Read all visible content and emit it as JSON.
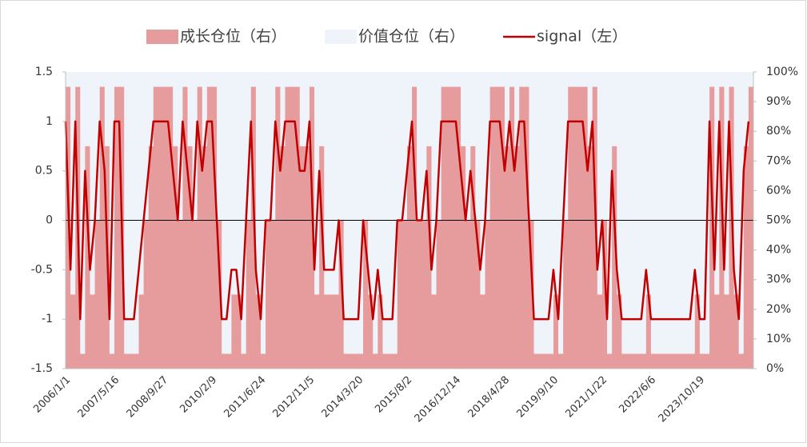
{
  "chart_data": {
    "type": "stacked-area-line",
    "categories": [
      "2006/1/1",
      null,
      null,
      null,
      null,
      null,
      null,
      null,
      null,
      null,
      "2007/5/16",
      null,
      null,
      null,
      null,
      null,
      null,
      null,
      null,
      null,
      "2008/9/27",
      null,
      null,
      null,
      null,
      null,
      null,
      null,
      null,
      null,
      "2010/2/9",
      null,
      null,
      null,
      null,
      null,
      null,
      null,
      null,
      null,
      "2011/6/24",
      null,
      null,
      null,
      null,
      null,
      null,
      null,
      null,
      null,
      "2012/11/5",
      null,
      null,
      null,
      null,
      null,
      null,
      null,
      null,
      null,
      "2014/3/20",
      null,
      null,
      null,
      null,
      null,
      null,
      null,
      null,
      null,
      "2015/8/2",
      null,
      null,
      null,
      null,
      null,
      null,
      null,
      null,
      null,
      "2016/12/14",
      null,
      null,
      null,
      null,
      null,
      null,
      null,
      null,
      null,
      "2018/4/28",
      null,
      null,
      null,
      null,
      null,
      null,
      null,
      null,
      null,
      "2019/9/10",
      null,
      null,
      null,
      null,
      null,
      null,
      null,
      null,
      null,
      "2021/1/22",
      null,
      null,
      null,
      null,
      null,
      null,
      null,
      null,
      null,
      "2022/6/6",
      null,
      null,
      null,
      null,
      null,
      null,
      null,
      null,
      null,
      "2023/10/19",
      null,
      null,
      null,
      null,
      null,
      null,
      null,
      null,
      null,
      null
    ],
    "series": [
      {
        "name": "成长仓位（右）",
        "color": "#e69c9c",
        "axis": "y2",
        "values": [
          95,
          25,
          95,
          5,
          75,
          25,
          50,
          95,
          75,
          5,
          95,
          95,
          5,
          5,
          5,
          25,
          50,
          75,
          95,
          95,
          95,
          95,
          75,
          50,
          95,
          75,
          50,
          95,
          75,
          95,
          95,
          50,
          5,
          5,
          25,
          25,
          5,
          50,
          95,
          25,
          5,
          50,
          50,
          95,
          75,
          95,
          95,
          95,
          75,
          75,
          95,
          25,
          75,
          25,
          25,
          25,
          50,
          5,
          5,
          5,
          5,
          50,
          25,
          5,
          25,
          5,
          5,
          5,
          50,
          50,
          75,
          95,
          50,
          50,
          75,
          25,
          50,
          95,
          95,
          95,
          95,
          75,
          50,
          75,
          50,
          25,
          50,
          95,
          95,
          95,
          75,
          95,
          75,
          95,
          95,
          50,
          5,
          5,
          5,
          5,
          25,
          5,
          50,
          95,
          95,
          95,
          95,
          75,
          95,
          25,
          50,
          5,
          75,
          25,
          5,
          5,
          5,
          5,
          5,
          25,
          5,
          5,
          5,
          5,
          5,
          5,
          5,
          5,
          5,
          25,
          5,
          5,
          95,
          25,
          95,
          25,
          95,
          25,
          5,
          75,
          95
        ]
      },
      {
        "name": "价值仓位（右）",
        "color": "#eef4fa",
        "axis": "y2",
        "values": [
          5,
          75,
          5,
          95,
          25,
          75,
          50,
          5,
          25,
          95,
          5,
          5,
          95,
          95,
          95,
          75,
          50,
          25,
          5,
          5,
          5,
          5,
          25,
          50,
          5,
          25,
          50,
          5,
          25,
          5,
          5,
          50,
          95,
          95,
          75,
          75,
          95,
          50,
          5,
          75,
          95,
          50,
          50,
          5,
          25,
          5,
          5,
          5,
          25,
          25,
          5,
          75,
          25,
          75,
          75,
          75,
          50,
          95,
          95,
          95,
          95,
          50,
          75,
          95,
          75,
          95,
          95,
          95,
          50,
          50,
          25,
          5,
          50,
          50,
          25,
          75,
          50,
          5,
          5,
          5,
          5,
          25,
          50,
          25,
          50,
          75,
          50,
          5,
          5,
          5,
          25,
          5,
          25,
          5,
          5,
          50,
          95,
          95,
          95,
          95,
          75,
          95,
          50,
          5,
          5,
          5,
          5,
          25,
          5,
          75,
          50,
          95,
          25,
          75,
          95,
          95,
          95,
          95,
          95,
          75,
          95,
          95,
          95,
          95,
          95,
          95,
          95,
          95,
          95,
          75,
          95,
          95,
          5,
          75,
          5,
          75,
          5,
          75,
          95,
          25,
          5
        ]
      },
      {
        "name": "signal（左）",
        "color": "#c00000",
        "values": [
          1,
          -0.5,
          1,
          -1,
          0.5,
          -0.5,
          0,
          1,
          0.5,
          -1,
          1,
          1,
          -1,
          -1,
          -1,
          -0.5,
          0,
          0.5,
          1,
          1,
          1,
          1,
          0.5,
          0,
          1,
          0.5,
          0,
          1,
          0.5,
          1,
          1,
          0,
          -1,
          -1,
          -0.5,
          -0.5,
          -1,
          0,
          1,
          -0.5,
          -1,
          0,
          0,
          1,
          0.5,
          1,
          1,
          1,
          0.5,
          0.5,
          1,
          -0.5,
          0.5,
          -0.5,
          -0.5,
          -0.5,
          0,
          -1,
          -1,
          -1,
          -1,
          0,
          -0.5,
          -1,
          -0.5,
          -1,
          -1,
          -1,
          0,
          0,
          0.5,
          1,
          0,
          0,
          0.5,
          -0.5,
          0,
          1,
          1,
          1,
          1,
          0.5,
          0,
          0.5,
          0,
          -0.5,
          0,
          1,
          1,
          1,
          0.5,
          1,
          0.5,
          1,
          1,
          0,
          -1,
          -1,
          -1,
          -1,
          -0.5,
          -1,
          0,
          1,
          1,
          1,
          1,
          0.5,
          1,
          -0.5,
          0,
          -1,
          0.5,
          -0.5,
          -1,
          -1,
          -1,
          -1,
          -1,
          -0.5,
          -1,
          -1,
          -1,
          -1,
          -1,
          -1,
          -1,
          -1,
          -1,
          -0.5,
          -1,
          -1,
          1,
          -0.5,
          1,
          -0.5,
          1,
          -0.5,
          -1,
          0.5,
          1
        ]
      }
    ],
    "ylim": [
      -1.5,
      1.5
    ],
    "yticks": [
      -1.5,
      -1,
      -0.5,
      0,
      0.5,
      1,
      1.5
    ],
    "y2lim": [
      0,
      100
    ],
    "y2ticks": [
      {
        "value": 0,
        "label": "0%"
      },
      {
        "value": 10,
        "label": "10%"
      },
      {
        "value": 20,
        "label": "20%"
      },
      {
        "value": 30,
        "label": "30%"
      },
      {
        "value": 40,
        "label": "40%"
      },
      {
        "value": 50,
        "label": "50%"
      },
      {
        "value": 60,
        "label": "60%"
      },
      {
        "value": 70,
        "label": "70%"
      },
      {
        "value": 80,
        "label": "80%"
      },
      {
        "value": 90,
        "label": "90%"
      },
      {
        "value": 100,
        "label": "100%"
      }
    ],
    "legend": "top"
  }
}
